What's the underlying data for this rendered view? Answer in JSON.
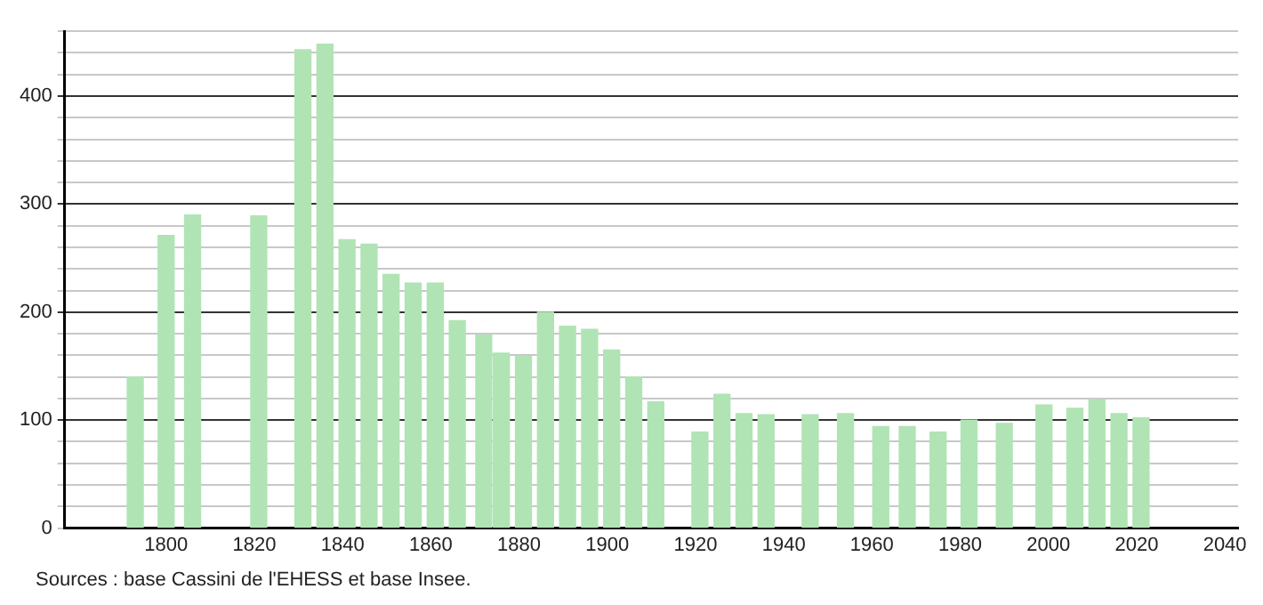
{
  "chart_data": {
    "type": "bar",
    "x": [
      1793,
      1800,
      1806,
      1821,
      1831,
      1836,
      1841,
      1846,
      1851,
      1856,
      1861,
      1866,
      1872,
      1876,
      1881,
      1886,
      1891,
      1896,
      1901,
      1906,
      1911,
      1921,
      1926,
      1931,
      1936,
      1946,
      1954,
      1962,
      1968,
      1975,
      1982,
      1990,
      1999,
      2006,
      2011,
      2016,
      2021
    ],
    "values": [
      140,
      271,
      290,
      289,
      443,
      448,
      267,
      263,
      235,
      227,
      227,
      192,
      179,
      162,
      159,
      200,
      187,
      184,
      165,
      140,
      117,
      89,
      124,
      106,
      105,
      105,
      106,
      94,
      94,
      89,
      100,
      97,
      114,
      111,
      119,
      106,
      102
    ],
    "color": "#b0e4b4",
    "xlim": [
      1777,
      2043
    ],
    "xticks": [
      1800,
      1820,
      1840,
      1860,
      1880,
      1900,
      1920,
      1940,
      1960,
      1980,
      2000,
      2020,
      2040
    ],
    "ylim": [
      0,
      460
    ],
    "yticks": [
      0,
      {
        "value": 20,
        "label": null
      },
      {
        "value": 40,
        "label": null
      },
      {
        "value": 60,
        "label": null
      },
      {
        "value": 80,
        "label": null
      },
      100,
      {
        "value": 120,
        "label": null
      },
      {
        "value": 140,
        "label": null
      },
      {
        "value": 160,
        "label": null
      },
      {
        "value": 180,
        "label": null
      },
      200,
      {
        "value": 220,
        "label": null
      },
      {
        "value": 240,
        "label": null
      },
      {
        "value": 260,
        "label": null
      },
      {
        "value": 280,
        "label": null
      },
      300,
      {
        "value": 320,
        "label": null
      },
      {
        "value": 340,
        "label": null
      },
      {
        "value": 360,
        "label": null
      },
      {
        "value": 380,
        "label": null
      },
      400,
      {
        "value": 420,
        "label": null
      },
      {
        "value": 440,
        "label": null
      },
      {
        "value": 460,
        "label": null
      }
    ],
    "grid": "y",
    "legend": false,
    "annotations": [
      "Sources : base Cassini de l'EHESS et base Insee."
    ]
  }
}
